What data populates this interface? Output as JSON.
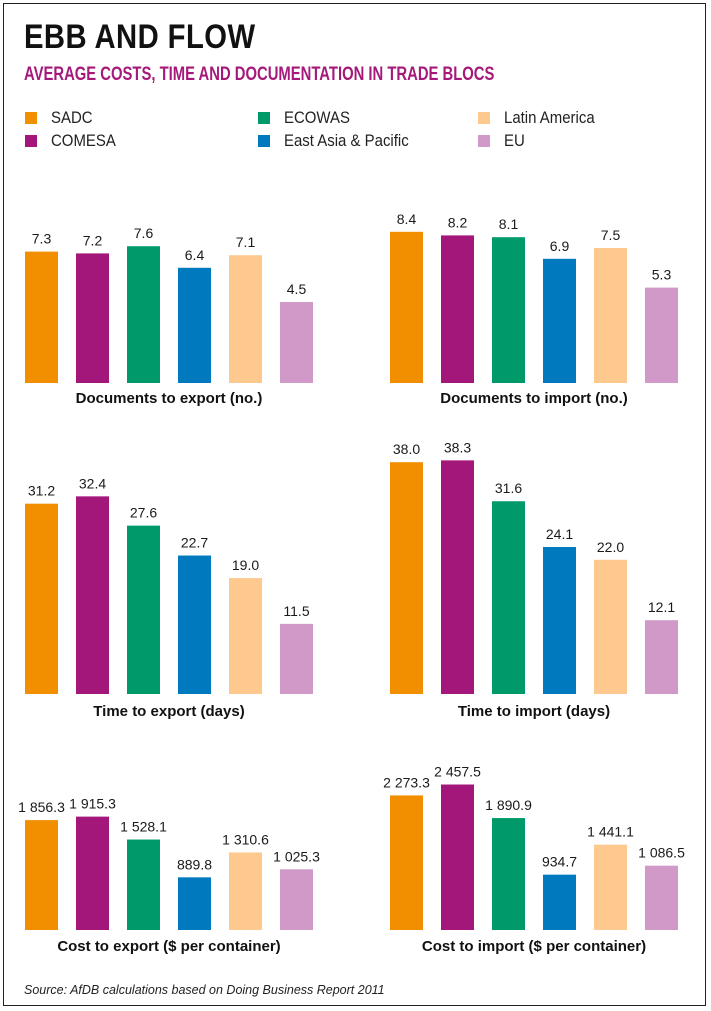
{
  "title": "EBB AND FLOW",
  "subtitle": "AVERAGE COSTS, TIME AND DOCUMENTATION IN TRADE BLOCS",
  "legend": [
    {
      "label": "SADC",
      "color": "#f18f00"
    },
    {
      "label": "COMESA",
      "color": "#a4177a"
    },
    {
      "label": "ECOWAS",
      "color": "#009a6a"
    },
    {
      "label": "East Asia & Pacific",
      "color": "#0079bf"
    },
    {
      "label": "Latin America",
      "color": "#fdc98f"
    },
    {
      "label": "EU",
      "color": "#d099c8"
    }
  ],
  "chart_data": [
    {
      "type": "bar",
      "xlabel": "Documents to export (no.)",
      "categories": [
        "SADC",
        "COMESA",
        "ECOWAS",
        "East Asia & Pacific",
        "Latin America",
        "EU"
      ],
      "values": [
        7.3,
        7.2,
        7.6,
        6.4,
        7.1,
        4.5
      ],
      "labels": [
        "7.3",
        "7.2",
        "7.6",
        "6.4",
        "7.1",
        "4.5"
      ],
      "ylim": [
        0,
        10
      ]
    },
    {
      "type": "bar",
      "xlabel": "Documents to import (no.)",
      "categories": [
        "SADC",
        "COMESA",
        "ECOWAS",
        "East Asia & Pacific",
        "Latin America",
        "EU"
      ],
      "values": [
        8.4,
        8.2,
        8.1,
        6.9,
        7.5,
        5.3
      ],
      "labels": [
        "8.4",
        "8.2",
        "8.1",
        "6.9",
        "7.5",
        "5.3"
      ],
      "ylim": [
        0,
        10
      ]
    },
    {
      "type": "bar",
      "xlabel": "Time to export (days)",
      "categories": [
        "SADC",
        "COMESA",
        "ECOWAS",
        "East Asia & Pacific",
        "Latin America",
        "EU"
      ],
      "values": [
        31.2,
        32.4,
        27.6,
        22.7,
        19.0,
        11.5
      ],
      "labels": [
        "31.2",
        "32.4",
        "27.6",
        "22.7",
        "19.0",
        "11.5"
      ],
      "ylim": [
        0,
        40
      ]
    },
    {
      "type": "bar",
      "xlabel": "Time to import (days)",
      "categories": [
        "SADC",
        "COMESA",
        "ECOWAS",
        "East Asia & Pacific",
        "Latin America",
        "EU"
      ],
      "values": [
        38.0,
        38.3,
        31.6,
        24.1,
        22.0,
        12.1
      ],
      "labels": [
        "38.0",
        "38.3",
        "31.6",
        "24.1",
        "22.0",
        "12.1"
      ],
      "ylim": [
        0,
        40
      ]
    },
    {
      "type": "bar",
      "xlabel": "Cost to export ($ per container)",
      "categories": [
        "SADC",
        "COMESA",
        "ECOWAS",
        "East Asia & Pacific",
        "Latin America",
        "EU"
      ],
      "values": [
        1856.3,
        1915.3,
        1528.1,
        889.8,
        1310.6,
        1025.3
      ],
      "labels": [
        "1 856.3",
        "1 915.3",
        "1 528.1",
        "889.8",
        "1 310.6",
        "1 025.3"
      ],
      "ylim": [
        0,
        2500
      ]
    },
    {
      "type": "bar",
      "xlabel": "Cost to import ($ per container)",
      "categories": [
        "SADC",
        "COMESA",
        "ECOWAS",
        "East Asia & Pacific",
        "Latin America",
        "EU"
      ],
      "values": [
        2273.3,
        2457.5,
        1890.9,
        934.7,
        1441.1,
        1086.5
      ],
      "labels": [
        "2 273.3",
        "2 457.5",
        "1 890.9",
        "934.7",
        "1 441.1",
        "1 086.5"
      ],
      "ylim": [
        0,
        2500
      ]
    }
  ],
  "source": "Source: AfDB calculations based on Doing Business Report 2011"
}
